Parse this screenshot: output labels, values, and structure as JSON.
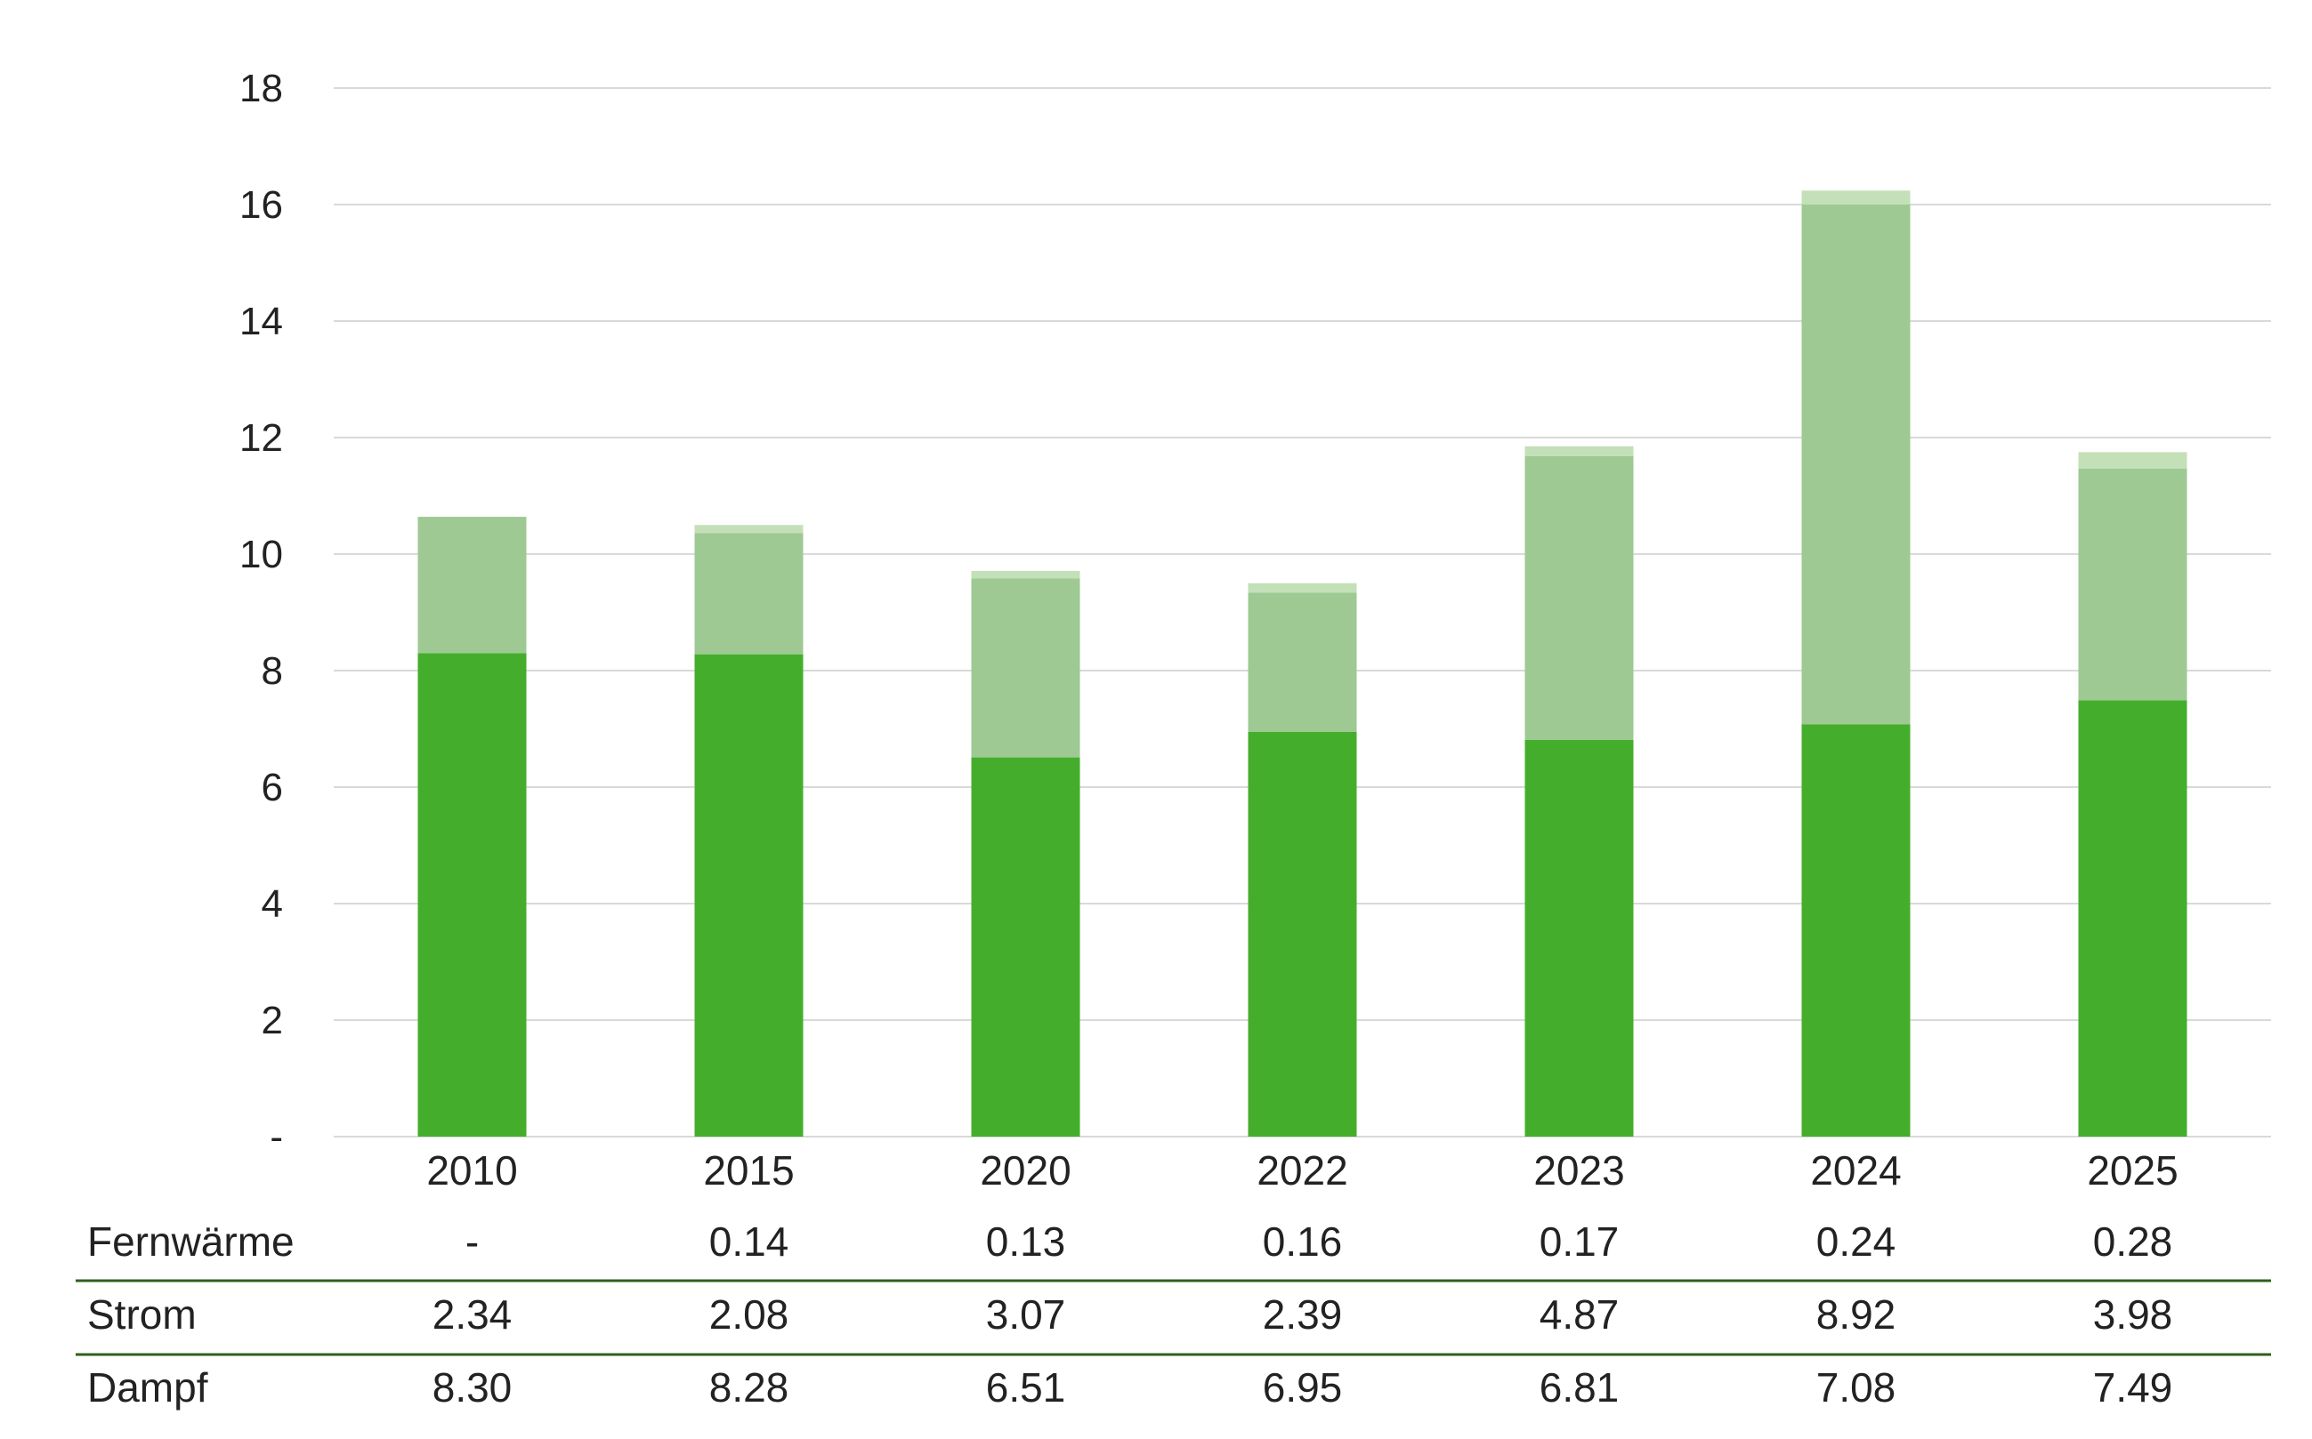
{
  "chart_data": {
    "type": "bar",
    "stacked": true,
    "categories": [
      "2010",
      "2015",
      "2020",
      "2022",
      "2023",
      "2024",
      "2025"
    ],
    "series": [
      {
        "name": "Dampf",
        "values": [
          8.3,
          8.28,
          6.51,
          6.95,
          6.81,
          7.08,
          7.49
        ],
        "display": [
          "8.30",
          "8.28",
          "6.51",
          "6.95",
          "6.81",
          "7.08",
          "7.49"
        ],
        "color": "#44ae2c"
      },
      {
        "name": "Strom",
        "values": [
          2.34,
          2.08,
          3.07,
          2.39,
          4.87,
          8.92,
          3.98
        ],
        "display": [
          "2.34",
          "2.08",
          "3.07",
          "2.39",
          "4.87",
          "8.92",
          "3.98"
        ],
        "color": "#9ec993"
      },
      {
        "name": "Fernwärme",
        "values": [
          0,
          0.14,
          0.13,
          0.16,
          0.17,
          0.24,
          0.28
        ],
        "display": [
          "-",
          "0.14",
          "0.13",
          "0.16",
          "0.17",
          "0.24",
          "0.28"
        ],
        "color": "#c3e0b8"
      }
    ],
    "ylim": [
      0,
      18
    ],
    "yticks": [
      {
        "value": 0,
        "label": "-"
      },
      {
        "value": 2,
        "label": "2"
      },
      {
        "value": 4,
        "label": "4"
      },
      {
        "value": 6,
        "label": "6"
      },
      {
        "value": 8,
        "label": "8"
      },
      {
        "value": 10,
        "label": "10"
      },
      {
        "value": 12,
        "label": "12"
      },
      {
        "value": 14,
        "label": "14"
      },
      {
        "value": 16,
        "label": "16"
      },
      {
        "value": 18,
        "label": "18"
      }
    ],
    "grid": true,
    "data_table_below": true,
    "gridline_color": "#d9d9d9",
    "table_rule_color": "#2f5f1c",
    "title": "",
    "xlabel": "",
    "ylabel": ""
  }
}
